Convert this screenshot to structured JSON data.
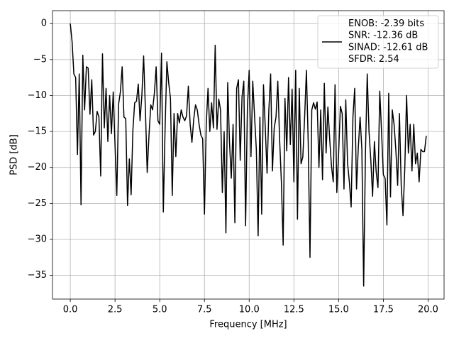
{
  "chart_data": {
    "type": "line",
    "xlabel": "Frequency [MHz]",
    "ylabel": "PSD [dB]",
    "x": [
      0,
      0.1,
      0.2,
      0.3,
      0.4,
      0.5,
      0.6,
      0.7,
      0.8,
      0.9,
      1,
      1.1,
      1.2,
      1.3,
      1.4,
      1.5,
      1.6,
      1.7,
      1.8,
      1.9,
      2,
      2.1,
      2.2,
      2.3,
      2.4,
      2.5,
      2.6,
      2.7,
      2.8,
      2.9,
      3,
      3.1,
      3.2,
      3.3,
      3.4,
      3.5,
      3.6,
      3.7,
      3.8,
      3.9,
      4,
      4.1,
      4.2,
      4.3,
      4.4,
      4.5,
      4.6,
      4.7,
      4.8,
      4.9,
      5,
      5.1,
      5.2,
      5.3,
      5.4,
      5.5,
      5.6,
      5.7,
      5.8,
      5.9,
      6,
      6.1,
      6.2,
      6.3,
      6.4,
      6.5,
      6.6,
      6.7,
      6.8,
      6.9,
      7,
      7.1,
      7.2,
      7.3,
      7.4,
      7.5,
      7.6,
      7.7,
      7.8,
      7.9,
      8,
      8.1,
      8.2,
      8.3,
      8.4,
      8.5,
      8.6,
      8.7,
      8.8,
      8.9,
      9,
      9.1,
      9.2,
      9.3,
      9.4,
      9.5,
      9.6,
      9.7,
      9.8,
      9.9,
      10,
      10.1,
      10.2,
      10.3,
      10.4,
      10.5,
      10.6,
      10.7,
      10.8,
      10.9,
      11,
      11.1,
      11.2,
      11.3,
      11.4,
      11.5,
      11.6,
      11.7,
      11.8,
      11.9,
      12,
      12.1,
      12.2,
      12.3,
      12.4,
      12.5,
      12.6,
      12.7,
      12.8,
      12.9,
      13,
      13.1,
      13.2,
      13.3,
      13.4,
      13.5,
      13.6,
      13.7,
      13.8,
      13.9,
      14,
      14.1,
      14.2,
      14.3,
      14.4,
      14.5,
      14.6,
      14.7,
      14.8,
      14.9,
      15,
      15.1,
      15.2,
      15.3,
      15.4,
      15.5,
      15.6,
      15.7,
      15.8,
      15.9,
      16,
      16.1,
      16.2,
      16.3,
      16.4,
      16.5,
      16.6,
      16.7,
      16.8,
      16.9,
      17,
      17.1,
      17.2,
      17.3,
      17.4,
      17.5,
      17.6,
      17.7,
      17.8,
      17.9,
      18,
      18.1,
      18.2,
      18.3,
      18.4,
      18.5,
      18.6,
      18.7,
      18.8,
      18.9,
      19,
      19.1,
      19.2,
      19.3,
      19.4,
      19.5,
      19.6,
      19.7,
      19.8,
      19.9
    ],
    "series": [
      {
        "name": "ENOB: -2.39 bits\nSNR: -12.36 dB\nSINAD: -12.61 dB\nSFDR: 2.54",
        "color": "#000000",
        "values": [
          0,
          -2.5,
          -7,
          -7.5,
          -18.2,
          -7,
          -25.2,
          -4.4,
          -12,
          -6,
          -6.2,
          -12.6,
          -7.8,
          -15.5,
          -15,
          -12.2,
          -13,
          -21.2,
          -4.2,
          -14.5,
          -9,
          -16.4,
          -10,
          -15.3,
          -9.5,
          -16.8,
          -23.9,
          -11.2,
          -9.5,
          -6,
          -13,
          -13.2,
          -25.3,
          -18.8,
          -23.8,
          -14.8,
          -11,
          -10.8,
          -8.4,
          -13.5,
          -10,
          -4.5,
          -12,
          -20.7,
          -15.5,
          -11.3,
          -12,
          -9.7,
          -6,
          -13.5,
          -14,
          -4.1,
          -26.2,
          -14.5,
          -5.3,
          -8.2,
          -10.4,
          -23.9,
          -12.5,
          -18.5,
          -12.5,
          -13.8,
          -12,
          -13,
          -13.5,
          -12.8,
          -8.7,
          -14,
          -16.5,
          -13.3,
          -11.3,
          -12,
          -14,
          -15.5,
          -16,
          -26.5,
          -14,
          -9,
          -15,
          -11,
          -14.5,
          -3,
          -14.7,
          -10.5,
          -12,
          -23.5,
          -15,
          -29.1,
          -8.2,
          -16.5,
          -21.5,
          -14,
          -27.7,
          -9,
          -7.8,
          -19,
          -10.2,
          -8,
          -28.1,
          -11.8,
          -6.5,
          -18.5,
          -8,
          -12.8,
          -17.5,
          -29.5,
          -13,
          -26.5,
          -8.5,
          -14.5,
          -20.8,
          -12,
          -7,
          -20.5,
          -14.5,
          -13,
          -8,
          -16,
          -22,
          -30.8,
          -10.4,
          -17.7,
          -7.5,
          -16.8,
          -9.1,
          -22,
          -6.5,
          -27.2,
          -9,
          -19.5,
          -18.5,
          -13,
          -6.5,
          -16.5,
          -32.5,
          -12,
          -11,
          -11.9,
          -10.9,
          -20,
          -12,
          -21.7,
          -8.3,
          -18,
          -11.6,
          -16,
          -19.8,
          -22,
          -8.5,
          -23.5,
          -18,
          -11.5,
          -12.5,
          -23,
          -10.6,
          -19.4,
          -22,
          -25.5,
          -13,
          -9,
          -23,
          -17.3,
          -13,
          -17.5,
          -36.5,
          -18,
          -7,
          -15,
          -19,
          -24,
          -16.4,
          -20.6,
          -22.8,
          -9.4,
          -15,
          -21,
          -21.5,
          -28,
          -9.7,
          -24.1,
          -12,
          -14,
          -17.6,
          -22.5,
          -12.5,
          -22.5,
          -26.7,
          -20,
          -10,
          -18,
          -14,
          -20.5,
          -14,
          -19.5,
          -18,
          -22,
          -17.5,
          -17.8,
          -17.8,
          -15.6
        ]
      }
    ],
    "xlim": [
      -0.995,
      20.895
    ],
    "ylim": [
      -38.3,
      1.8
    ],
    "xticks": [
      {
        "value": 0,
        "label": "0.0"
      },
      2.5,
      {
        "value": 5,
        "label": "5.0"
      },
      7.5,
      {
        "value": 10,
        "label": "10.0"
      },
      12.5,
      {
        "value": 15,
        "label": "15.0"
      },
      17.5,
      {
        "value": 20,
        "label": "20.0"
      }
    ],
    "yticks": [
      0,
      {
        "value": -5,
        "label": "−5"
      },
      {
        "value": -10,
        "label": "−10"
      },
      {
        "value": -15,
        "label": "−15"
      },
      {
        "value": -20,
        "label": "−20"
      },
      {
        "value": -25,
        "label": "−25"
      },
      {
        "value": -30,
        "label": "−30"
      },
      {
        "value": -35,
        "label": "−35"
      }
    ],
    "grid": true,
    "legend": "upper right"
  }
}
